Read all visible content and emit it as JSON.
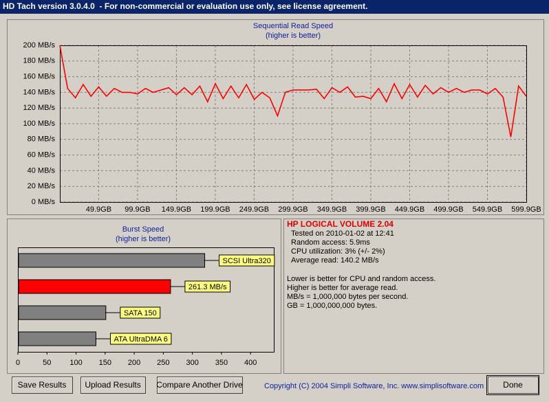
{
  "window_title": "HD Tach version 3.0.4.0  - For non-commercial or evaluation use only, see license agreement.",
  "chart_data": [
    {
      "type": "line",
      "title": "Sequential Read Speed",
      "subtitle": "(higher is better)",
      "x": [
        0,
        10,
        20,
        30,
        40,
        50,
        60,
        70,
        80,
        90,
        100,
        110,
        120,
        130,
        140,
        150,
        160,
        170,
        180,
        190,
        200,
        210,
        220,
        230,
        240,
        250,
        260,
        270,
        280,
        290,
        300,
        310,
        320,
        330,
        340,
        350,
        360,
        370,
        380,
        390,
        400,
        410,
        420,
        430,
        440,
        450,
        460,
        470,
        480,
        490,
        500,
        510,
        520,
        530,
        540,
        550,
        560,
        570,
        580,
        590,
        599.9
      ],
      "values": [
        200,
        145,
        133,
        150,
        135,
        147,
        135,
        145,
        140,
        140,
        138,
        145,
        140,
        143,
        146,
        137,
        146,
        137,
        148,
        128,
        151,
        132,
        148,
        133,
        150,
        131,
        140,
        133,
        110,
        140,
        143,
        143,
        143,
        144,
        132,
        146,
        140,
        147,
        134,
        135,
        132,
        145,
        128,
        151,
        132,
        150,
        134,
        149,
        138,
        146,
        140,
        145,
        140,
        143,
        143,
        138,
        145,
        134,
        83,
        148,
        135
      ],
      "color": "#ff0000",
      "xlim": [
        0,
        599.9
      ],
      "xticks": [
        {
          "value": 49.9,
          "label": "49.9GB"
        },
        {
          "value": 99.9,
          "label": "99.9GB"
        },
        {
          "value": 149.9,
          "label": "149.9GB"
        },
        {
          "value": 199.9,
          "label": "199.9GB"
        },
        {
          "value": 249.9,
          "label": "249.9GB"
        },
        {
          "value": 299.9,
          "label": "299.9GB"
        },
        {
          "value": 349.9,
          "label": "349.9GB"
        },
        {
          "value": 399.9,
          "label": "399.9GB"
        },
        {
          "value": 449.9,
          "label": "449.9GB"
        },
        {
          "value": 499.9,
          "label": "499.9GB"
        },
        {
          "value": 549.9,
          "label": "549.9GB"
        },
        {
          "value": 599.9,
          "label": "599.9GB"
        }
      ],
      "ylim": [
        0,
        200
      ],
      "yticks": [
        {
          "value": 0,
          "label": "0 MB/s"
        },
        {
          "value": 20,
          "label": "20 MB/s"
        },
        {
          "value": 40,
          "label": "40 MB/s"
        },
        {
          "value": 60,
          "label": "60 MB/s"
        },
        {
          "value": 80,
          "label": "80 MB/s"
        },
        {
          "value": 100,
          "label": "100 MB/s"
        },
        {
          "value": 120,
          "label": "120 MB/s"
        },
        {
          "value": 140,
          "label": "140 MB/s"
        },
        {
          "value": 160,
          "label": "160 MB/s"
        },
        {
          "value": 180,
          "label": "180 MB/s"
        },
        {
          "value": 200,
          "label": "200 MB/s"
        }
      ],
      "grid": true
    },
    {
      "type": "hbar",
      "title": "Burst Speed",
      "subtitle": "(higher is better)",
      "categories": [
        "SCSI Ultra320",
        null,
        "SATA 150",
        "ATA UltraDMA 6"
      ],
      "values": [
        320,
        261.3,
        150,
        133
      ],
      "value_labels": [
        null,
        "261.3 MB/s",
        null,
        null
      ],
      "colors": [
        "#808080",
        "#ff0000",
        "#808080",
        "#808080"
      ],
      "xlim": [
        0,
        440
      ],
      "xticks": [
        0,
        50,
        100,
        150,
        200,
        250,
        300,
        350,
        400
      ]
    }
  ],
  "info": {
    "drive": "HP LOGICAL VOLUME 2.04",
    "lines": [
      "Tested on 2010-01-02 at 12:41",
      "Random access: 5.9ms",
      "CPU utilization: 3% (+/- 2%)",
      "Average read: 140.2 MB/s"
    ],
    "notes": [
      "Lower is better for CPU and random access.",
      "Higher is better for average read.",
      "MB/s = 1,000,000 bytes per second.",
      "GB = 1,000,000,000 bytes."
    ]
  },
  "buttons": [
    "Save Results",
    "Upload Results",
    "Compare Another Drive",
    "Done"
  ],
  "copyright": "Copyright (C) 2004 Simpli Software, Inc. www.simplisoftware.com"
}
